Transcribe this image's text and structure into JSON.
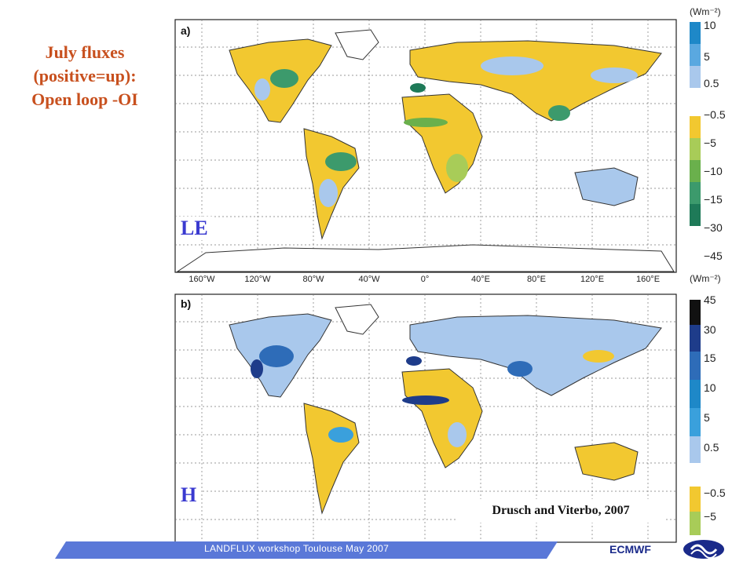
{
  "title": {
    "line1": "July fluxes",
    "line2": "(positive=up):",
    "line3": "Open loop -OI"
  },
  "panels": {
    "a": {
      "tag": "a)",
      "label": "LE",
      "units": "(Wm⁻²)",
      "ticks": [
        "10",
        "5",
        "0.5",
        "−0.5",
        "−5",
        "−10",
        "−15",
        "−30",
        "−45"
      ]
    },
    "b": {
      "tag": "b)",
      "label": "H",
      "units": "(Wm⁻²)",
      "ticks": [
        "45",
        "30",
        "15",
        "10",
        "5",
        "0.5",
        "−0.5",
        "−5"
      ]
    }
  },
  "longitudes": [
    "160°W",
    "120°W",
    "80°W",
    "40°W",
    "0°",
    "40°E",
    "80°E",
    "120°E",
    "160°E"
  ],
  "citation": "Drusch and Viterbo, 2007",
  "footer": {
    "workshop": "LANDFLUX workshop Toulouse May 2007",
    "org": "ECMWF"
  },
  "colors": {
    "positive_light": "#a9c8ec",
    "positive_mid": "#5aa8e0",
    "positive_strong": "#1e88c8",
    "neg_yellow": "#f2c830",
    "neg_lightgreen": "#a8cc58",
    "neg_green": "#6ab04c",
    "neg_teal": "#3c9a6c",
    "neg_darkteal": "#1e7a58",
    "h_blue1": "#a9c8ec",
    "h_blue2": "#3aa0dc",
    "h_blue3": "#2e6cb8",
    "h_blue4": "#1e3c8a",
    "h_black": "#111111",
    "title": "#c8501e",
    "label": "#3a3ad0",
    "footer_band": "#5a78d8"
  }
}
